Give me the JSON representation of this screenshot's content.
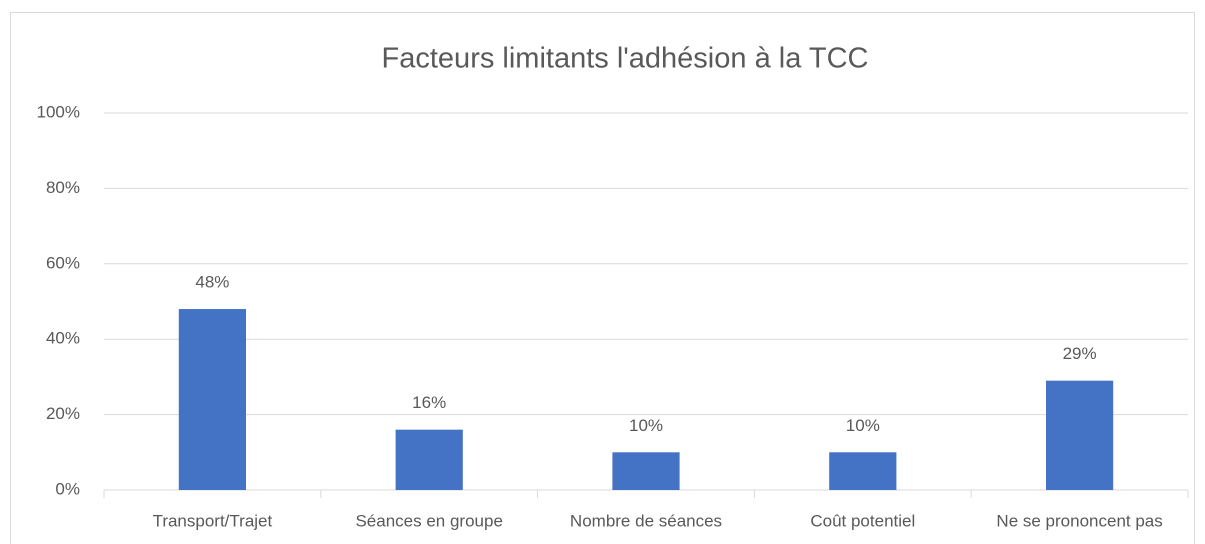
{
  "chart_data": {
    "type": "bar",
    "title": "Facteurs limitants l'adhésion à la TCC",
    "categories": [
      "Transport/Trajet",
      "Séances en groupe",
      "Nombre de séances",
      "Coût potentiel",
      "Ne se prononcent pas"
    ],
    "values": [
      48,
      16,
      10,
      10,
      29
    ],
    "value_labels": [
      "48%",
      "16%",
      "10%",
      "10%",
      "29%"
    ],
    "color": "#4472c4",
    "ylim": [
      0,
      100
    ],
    "yticks": [
      {
        "value": 0,
        "label": "0%"
      },
      {
        "value": 20,
        "label": "20%"
      },
      {
        "value": 40,
        "label": "40%"
      },
      {
        "value": 60,
        "label": "60%"
      },
      {
        "value": 80,
        "label": "80%"
      },
      {
        "value": 100,
        "label": "100%"
      }
    ],
    "grid": true
  }
}
